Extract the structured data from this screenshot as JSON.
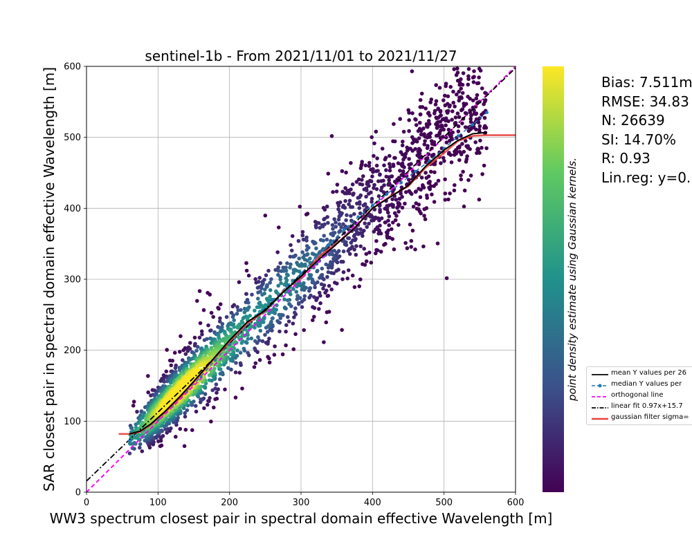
{
  "chart_data": {
    "type": "scatter",
    "title": "sentinel-1b - From 2021/11/01 to 2021/11/27",
    "xlabel": "WW3 spectrum closest pair in spectral domain effective Wavelength [m]",
    "ylabel": "SAR closest pair in spectral domain effective Wavelength [m]",
    "xlim": [
      0,
      600
    ],
    "ylim": [
      0,
      600
    ],
    "xticks": [
      "0",
      "100",
      "200",
      "300",
      "400",
      "500",
      "600"
    ],
    "yticks": [
      "0",
      "100",
      "200",
      "300",
      "400",
      "500",
      "600"
    ],
    "grid": true,
    "colorbar_label": "point density estimate using Gaussian kernels.",
    "colormap": [
      "#440154",
      "#3b528b",
      "#21918c",
      "#5ec962",
      "#fde725"
    ],
    "legend_position": "right-middle",
    "stats": [
      "Bias: 7.511m",
      "RMSE: 34.83",
      "N: 26639",
      "SI: 14.70%",
      "R: 0.93",
      "Lin.reg: y=0."
    ],
    "series": [
      {
        "name": "mean Y values per 26",
        "style": "solid",
        "color": "#000000",
        "x": [
          60,
          75,
          90,
          110,
          130,
          150,
          175,
          200,
          225,
          250,
          275,
          300,
          325,
          350,
          375,
          400,
          425,
          450,
          475,
          500,
          520,
          540,
          560
        ],
        "y": [
          82,
          86,
          96,
          114,
          134,
          156,
          185,
          214,
          240,
          256,
          282,
          304,
          328,
          350,
          372,
          400,
          416,
          432,
          460,
          482,
          496,
          505,
          507
        ]
      },
      {
        "name": "median Y values per",
        "style": "dashed-marker",
        "color": "#1f77b4",
        "x": [
          60,
          80,
          100,
          120,
          140,
          160,
          180,
          200,
          220,
          240,
          260,
          280,
          300,
          320,
          340,
          360,
          380,
          400,
          420,
          440,
          460,
          480,
          500,
          520,
          540,
          560
        ],
        "y": [
          72,
          88,
          102,
          122,
          142,
          163,
          186,
          208,
          230,
          250,
          270,
          290,
          308,
          330,
          350,
          370,
          388,
          404,
          420,
          436,
          452,
          467,
          484,
          502,
          518,
          535
        ]
      },
      {
        "name": "orthogonal line",
        "style": "dashed",
        "color": "#ff00ff",
        "x": [
          0,
          600
        ],
        "y": [
          0,
          600
        ]
      },
      {
        "name": "linear fit 0.97x+15.7",
        "style": "dashdot",
        "color": "#000000",
        "x": [
          0,
          600
        ],
        "y": [
          15.7,
          597.7
        ]
      },
      {
        "name": "gaussian filter sigma=",
        "style": "solid",
        "color": "#e8413c",
        "x": [
          45,
          60,
          75,
          90,
          110,
          130,
          150,
          175,
          200,
          225,
          250,
          275,
          300,
          325,
          350,
          375,
          400,
          425,
          450,
          475,
          500,
          520,
          540,
          560,
          580,
          600
        ],
        "y": [
          82,
          82,
          85,
          95,
          113,
          132,
          155,
          184,
          212,
          238,
          255,
          283,
          302,
          332,
          351,
          372,
          400,
          417,
          431,
          458,
          478,
          495,
          502,
          503,
          503,
          503
        ]
      }
    ]
  }
}
